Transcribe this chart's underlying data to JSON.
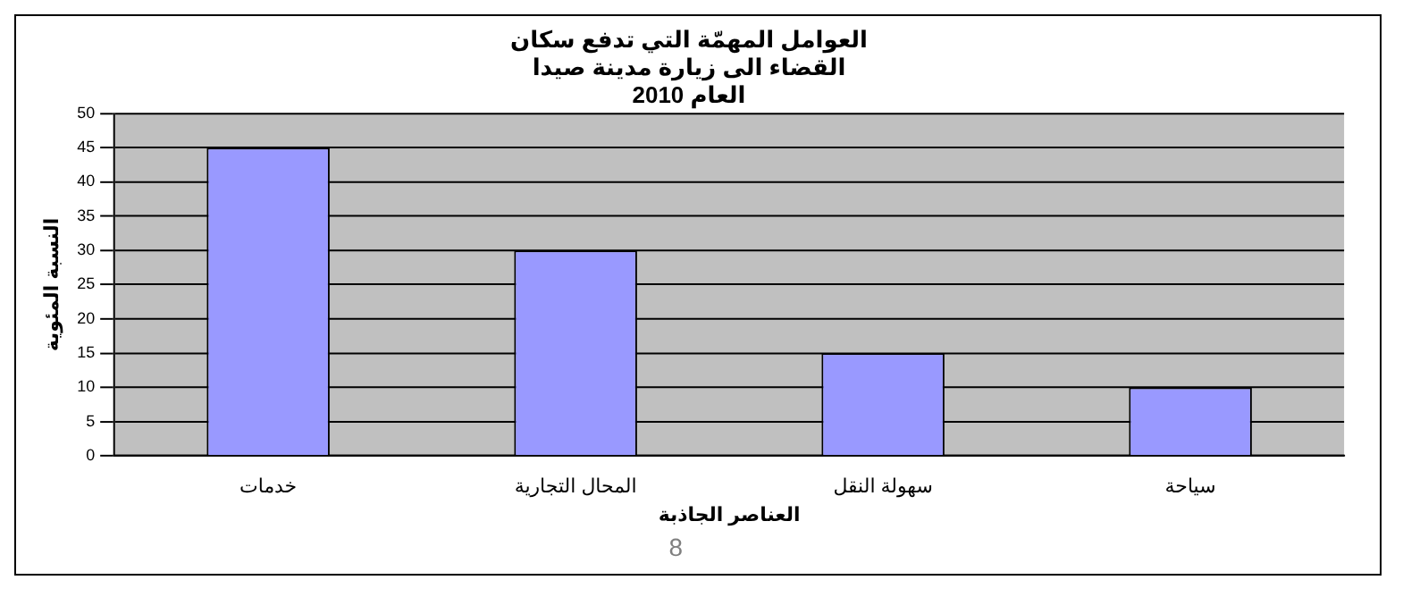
{
  "chart_data": {
    "type": "bar",
    "title": [
      "العوامل المهمّة التي تدفع سكان",
      "القضاء الى زيارة مدينة صيدا",
      "العام 2010"
    ],
    "xlabel": "العناصر الجاذبة",
    "ylabel": "النسبة المئوية",
    "categories": [
      "خدمات",
      "المحال التجارية",
      "سهولة النقل",
      "سياحة"
    ],
    "values": [
      45,
      30,
      15,
      10
    ],
    "color": "#9999ff",
    "ylim": [
      0,
      50
    ],
    "yticks": [
      0,
      5,
      10,
      15,
      20,
      25,
      30,
      35,
      40,
      45,
      50
    ],
    "grid": "y",
    "legend": false,
    "annotations": [
      "8"
    ]
  }
}
